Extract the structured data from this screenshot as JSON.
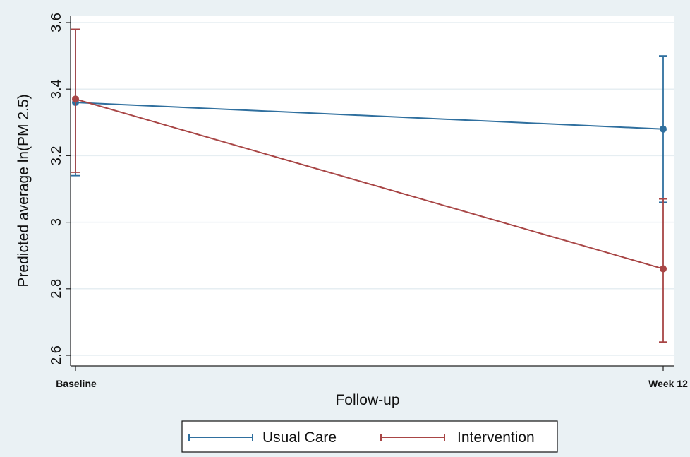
{
  "chart_data": {
    "type": "line",
    "title": "",
    "xlabel": "Follow-up",
    "ylabel": "Predicted average ln(PM 2.5)",
    "categories": [
      "Baseline",
      "Week 12"
    ],
    "ylim": [
      2.6,
      3.6
    ],
    "yticks": [
      2.6,
      2.8,
      3,
      3.2,
      3.4,
      3.6
    ],
    "ytick_labels": [
      "2.6",
      "2.8",
      "3",
      "3.2",
      "3.4",
      "3.6"
    ],
    "grid": true,
    "legend_position": "bottom",
    "series": [
      {
        "name": "Usual Care",
        "color": "#2f6f9e",
        "values": [
          3.36,
          3.28
        ],
        "ci_low": [
          3.14,
          3.06
        ],
        "ci_high": [
          3.58,
          3.5
        ]
      },
      {
        "name": "Intervention",
        "color": "#a84545",
        "values": [
          3.37,
          2.86
        ],
        "ci_low": [
          3.15,
          2.64
        ],
        "ci_high": [
          3.58,
          3.07
        ]
      }
    ]
  }
}
